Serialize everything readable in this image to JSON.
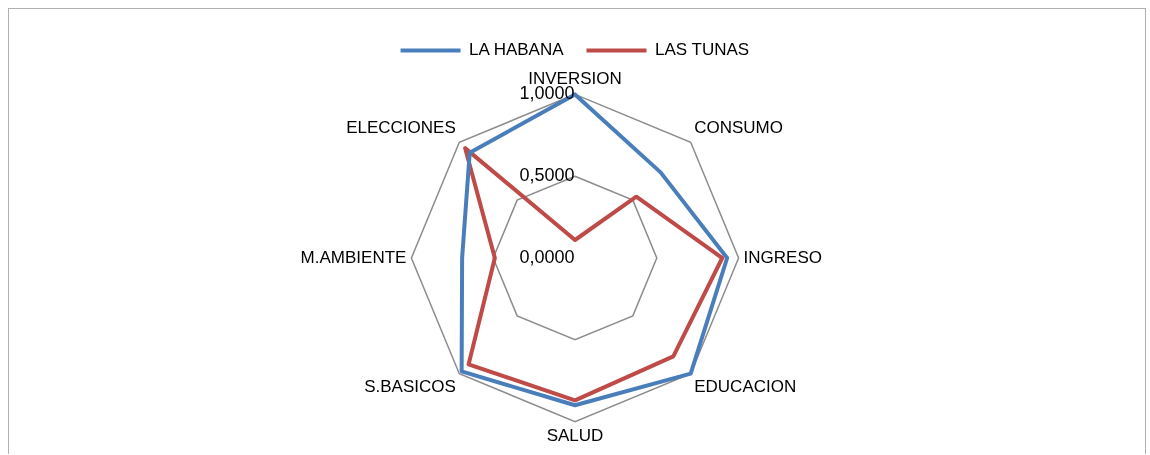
{
  "chart_data": {
    "type": "radar",
    "categories": [
      "INVERSION",
      "CONSUMO",
      "INGRESO",
      "EDUCACION",
      "SALUD",
      "S.BASICOS",
      "M.AMBIENTE",
      "ELECCIONES"
    ],
    "series": [
      {
        "name": "LA HABANA",
        "color": "#4a7ebb",
        "values": [
          1.0,
          0.74,
          0.93,
          1.0,
          0.9,
          0.98,
          0.69,
          0.91
        ]
      },
      {
        "name": "LAS TUNAS",
        "color": "#be4b48",
        "values": [
          0.11,
          0.53,
          0.9,
          0.85,
          0.87,
          0.92,
          0.49,
          0.95
        ]
      }
    ],
    "ylim": [
      0,
      1
    ],
    "yticks": [
      {
        "value": 0,
        "label": "0,0000"
      },
      {
        "value": 0.5,
        "label": "0,5000"
      },
      {
        "value": 1,
        "label": "1,0000"
      }
    ],
    "grid": true,
    "legend": "top",
    "marker": "none",
    "line_style": "solid"
  }
}
